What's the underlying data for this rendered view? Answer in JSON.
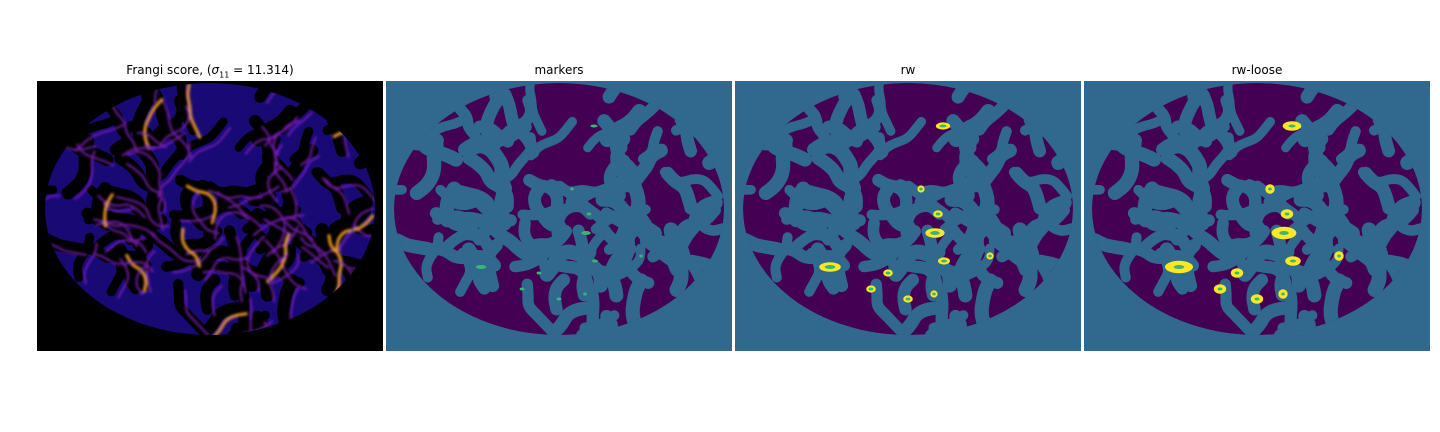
{
  "panels": [
    {
      "id": "frangi",
      "title_prefix": "Frangi score, (",
      "title_sigma": "σ",
      "title_sub": "11",
      "title_suffix": " = 11.314)"
    },
    {
      "id": "markers",
      "title": "markers"
    },
    {
      "id": "rw",
      "title": "rw"
    },
    {
      "id": "rw-loose",
      "title": "rw-loose"
    }
  ],
  "colors": {
    "frangi_background": "#000000",
    "frangi_low": "#1c0a8a",
    "frangi_mid": "#7a1fb8",
    "frangi_high": "#f39a2a",
    "segment_background": "#31688e",
    "segment_foreground": "#440154",
    "segment_marker": "#35b779",
    "segment_highlight": "#fde725"
  }
}
